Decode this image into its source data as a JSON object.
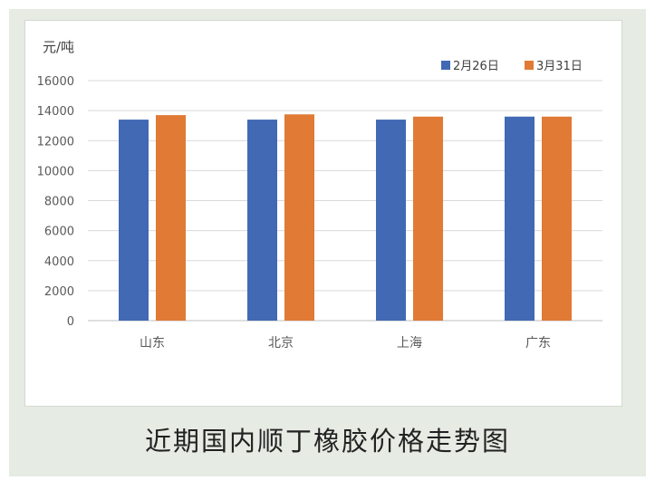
{
  "caption": "近期国内顺丁橡胶价格走势图",
  "chart_data": {
    "type": "bar",
    "ylabel": "元/吨",
    "categories": [
      "山东",
      "北京",
      "上海",
      "广东"
    ],
    "series": [
      {
        "name": "2月26日",
        "color": "#4169b4",
        "values": [
          13400,
          13400,
          13400,
          13600
        ]
      },
      {
        "name": "3月31日",
        "color": "#e07a35",
        "values": [
          13700,
          13750,
          13600,
          13600
        ]
      }
    ],
    "ylim": [
      0,
      16000
    ],
    "yticks": [
      0,
      2000,
      4000,
      6000,
      8000,
      10000,
      12000,
      14000,
      16000
    ],
    "grid": true,
    "legend_position": "top-right"
  }
}
